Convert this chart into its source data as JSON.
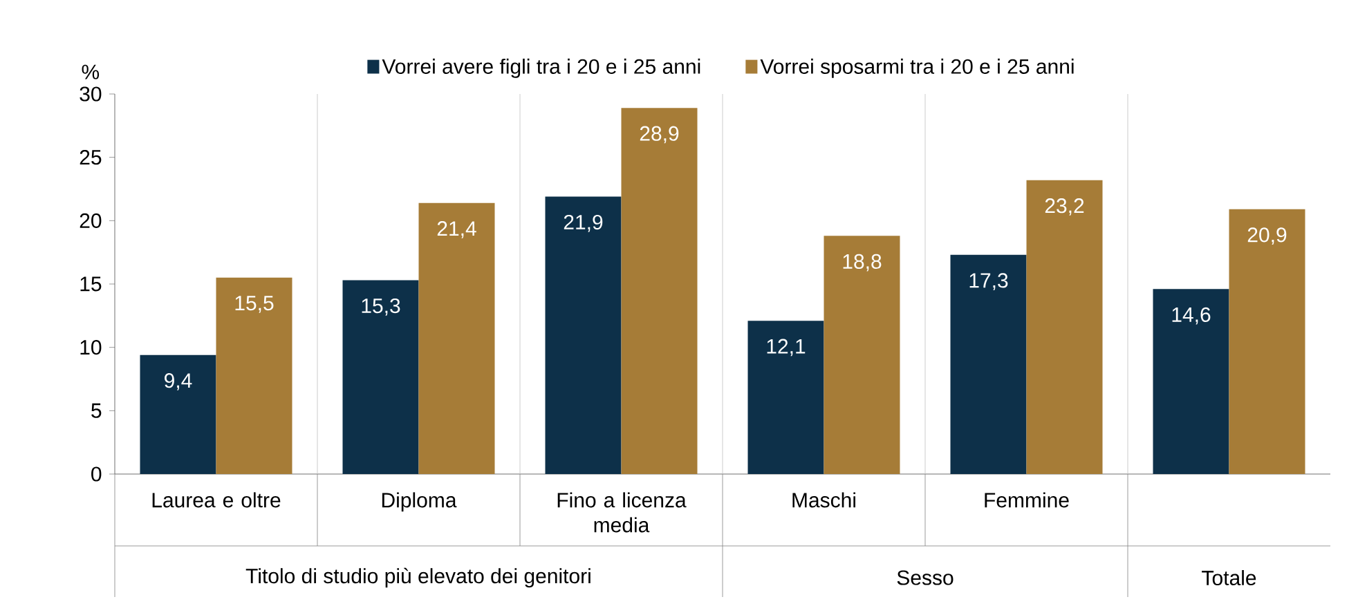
{
  "chart_data": {
    "type": "bar",
    "ylabel": "%",
    "categories": [
      "Laurea e oltre",
      "Diploma",
      "Fino a licenza media",
      "Maschi",
      "Femmine",
      null
    ],
    "series": [
      {
        "name": "Vorrei avere figli tra i 20 e i 25 anni",
        "color": "#0d3049",
        "values": [
          9.4,
          15.3,
          21.9,
          12.1,
          17.3,
          14.6
        ],
        "value_labels": [
          "9,4",
          "15,3",
          "21,9",
          "12,1",
          "17,3",
          "14,6"
        ]
      },
      {
        "name": "Vorrei sposarmi tra i 20 e i 25 anni",
        "color": "#a67c37",
        "values": [
          15.5,
          21.4,
          28.9,
          18.8,
          23.2,
          20.9
        ],
        "value_labels": [
          "15,5",
          "21,4",
          "28,9",
          "18,8",
          "23,2",
          "20,9"
        ]
      }
    ],
    "ylim": [
      0,
      30
    ],
    "yticks": [
      0,
      5,
      10,
      15,
      20,
      25,
      30
    ],
    "legend": "top",
    "grid": "x",
    "annotations": [
      "Titolo di studio più elevato dei genitori",
      "Sesso",
      "Totale"
    ]
  }
}
